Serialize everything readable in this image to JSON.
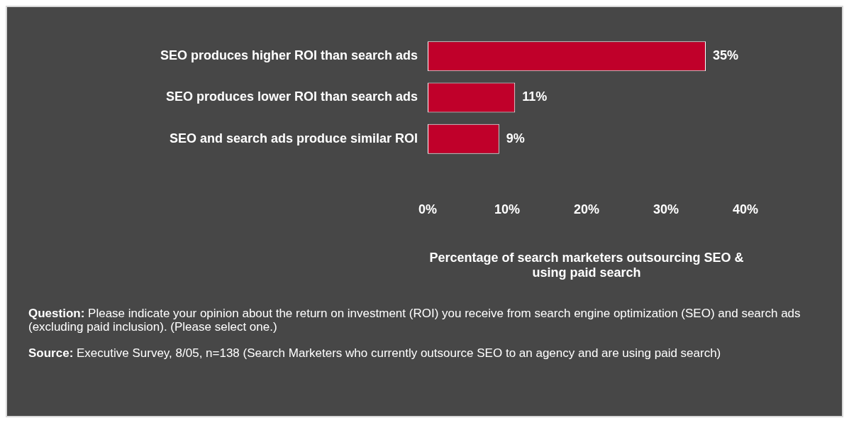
{
  "chart_data": {
    "type": "bar",
    "orientation": "horizontal",
    "categories": [
      "SEO produces higher ROI than search ads",
      "SEO produces lower ROI than search ads",
      "SEO and search ads produce similar ROI"
    ],
    "values": [
      35,
      11,
      9
    ],
    "color": "#c0002a",
    "data_labels": true,
    "value_labels": [
      "35%",
      "11%",
      "9%"
    ],
    "xlim": [
      0,
      40
    ],
    "xticks": [
      {
        "value": 0,
        "label": "0%"
      },
      {
        "value": 10,
        "label": "10%"
      },
      {
        "value": 20,
        "label": "20%"
      },
      {
        "value": 30,
        "label": "30%"
      },
      {
        "value": 40,
        "label": "40%"
      }
    ],
    "xlabel": "Percentage of search marketers outsourcing SEO & using paid search",
    "grid": false,
    "legend": false,
    "annotations": [
      "Question: Please indicate your opinion about the return on investment (ROI) you receive from search engine optimization (SEO) and search ads (excluding paid inclusion). (Please select one.)",
      "Source: Executive Survey, 8/05, n=138 (Search Marketers who currently outsource SEO to an agency and are using paid search)"
    ]
  }
}
